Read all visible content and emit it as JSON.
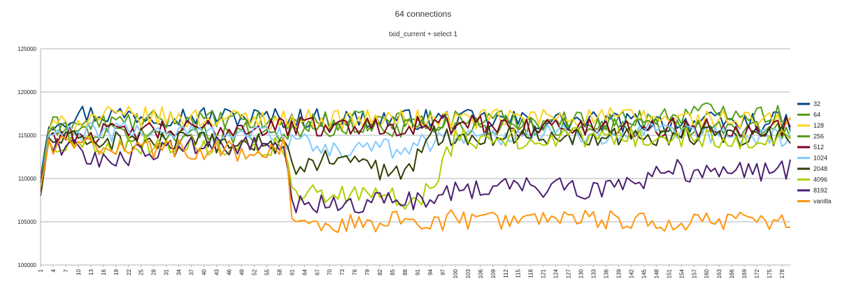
{
  "chart_data": {
    "type": "line",
    "title": "64 connections",
    "subtitle": "txid_current + select 1",
    "xlabel": "",
    "ylabel": "",
    "x_min": 1,
    "x_max": 180,
    "x_tick_labels": [
      "1",
      "4",
      "7",
      "10",
      "13",
      "16",
      "19",
      "22",
      "25",
      "28",
      "31",
      "34",
      "37",
      "40",
      "43",
      "46",
      "49",
      "52",
      "55",
      "58",
      "61",
      "64",
      "67",
      "70",
      "73",
      "76",
      "79",
      "82",
      "85",
      "88",
      "91",
      "94",
      "97",
      "100",
      "103",
      "106",
      "109",
      "112",
      "115",
      "118",
      "121",
      "124",
      "127",
      "130",
      "133",
      "136",
      "139",
      "142",
      "145",
      "148",
      "151",
      "154",
      "157",
      "160",
      "163",
      "166",
      "169",
      "172",
      "175",
      "178"
    ],
    "y_tick_labels": [
      "100000",
      "105000",
      "110000",
      "115000",
      "120000",
      "125000"
    ],
    "ylim": [
      100000,
      125000
    ],
    "grid": "horizontal",
    "legend_position": "right",
    "series": [
      {
        "name": "32",
        "color": "#004586",
        "profile": [
          [
            1,
            110000
          ],
          [
            3,
            116500
          ],
          [
            10,
            117500
          ],
          [
            60,
            117000
          ],
          [
            100,
            116800
          ],
          [
            140,
            116500
          ],
          [
            180,
            116500
          ]
        ]
      },
      {
        "name": "64",
        "color": "#579d1c",
        "profile": [
          [
            1,
            109500
          ],
          [
            3,
            116000
          ],
          [
            30,
            116800
          ],
          [
            60,
            116500
          ],
          [
            100,
            116800
          ],
          [
            140,
            116700
          ],
          [
            165,
            118000
          ],
          [
            180,
            117200
          ]
        ]
      },
      {
        "name": "128",
        "color": "#ffd320",
        "profile": [
          [
            1,
            109000
          ],
          [
            3,
            115800
          ],
          [
            15,
            117200
          ],
          [
            60,
            116800
          ],
          [
            100,
            116800
          ],
          [
            130,
            117200
          ],
          [
            180,
            116500
          ]
        ]
      },
      {
        "name": "256",
        "color": "#579d1c",
        "profile": [
          [
            1,
            109500
          ],
          [
            3,
            115500
          ],
          [
            30,
            115000
          ],
          [
            60,
            115500
          ],
          [
            100,
            116200
          ],
          [
            140,
            116000
          ],
          [
            180,
            115500
          ]
        ]
      },
      {
        "name": "512",
        "color": "#7e0021",
        "profile": [
          [
            1,
            108500
          ],
          [
            3,
            115000
          ],
          [
            20,
            115300
          ],
          [
            45,
            115800
          ],
          [
            60,
            116000
          ],
          [
            100,
            116200
          ],
          [
            140,
            115800
          ],
          [
            180,
            116000
          ]
        ]
      },
      {
        "name": "1024",
        "color": "#83caff",
        "profile": [
          [
            1,
            109000
          ],
          [
            3,
            115000
          ],
          [
            20,
            115500
          ],
          [
            58,
            115200
          ],
          [
            60,
            114500
          ],
          [
            70,
            113200
          ],
          [
            85,
            113500
          ],
          [
            93,
            114200
          ],
          [
            100,
            115000
          ],
          [
            140,
            115200
          ],
          [
            180,
            114800
          ]
        ]
      },
      {
        "name": "2048",
        "color": "#314004",
        "profile": [
          [
            1,
            108000
          ],
          [
            3,
            114500
          ],
          [
            30,
            114200
          ],
          [
            59,
            114000
          ],
          [
            61,
            111200
          ],
          [
            72,
            112500
          ],
          [
            82,
            111000
          ],
          [
            88,
            110600
          ],
          [
            91,
            112500
          ],
          [
            95,
            115000
          ],
          [
            140,
            115000
          ],
          [
            180,
            114800
          ]
        ]
      },
      {
        "name": "4096",
        "color": "#aecf00",
        "profile": [
          [
            1,
            109000
          ],
          [
            3,
            114000
          ],
          [
            30,
            114000
          ],
          [
            59,
            113800
          ],
          [
            61,
            108200
          ],
          [
            75,
            108000
          ],
          [
            90,
            107600
          ],
          [
            95,
            109000
          ],
          [
            98,
            113000
          ],
          [
            100,
            114500
          ],
          [
            140,
            114800
          ],
          [
            180,
            114500
          ]
        ]
      },
      {
        "name": "8192",
        "color": "#4b1f6f",
        "profile": [
          [
            1,
            109500
          ],
          [
            3,
            114000
          ],
          [
            10,
            113500
          ],
          [
            11,
            112000
          ],
          [
            40,
            113800
          ],
          [
            59,
            113600
          ],
          [
            61,
            106800
          ],
          [
            90,
            107400
          ],
          [
            100,
            108800
          ],
          [
            120,
            109000
          ],
          [
            135,
            108700
          ],
          [
            145,
            110000
          ],
          [
            150,
            111200
          ],
          [
            160,
            110500
          ],
          [
            175,
            110800
          ],
          [
            180,
            111200
          ]
        ]
      },
      {
        "name": "vanilla",
        "color": "#ff950e",
        "profile": [
          [
            1,
            109000
          ],
          [
            3,
            114000
          ],
          [
            30,
            113500
          ],
          [
            55,
            113000
          ],
          [
            59,
            113600
          ],
          [
            60,
            110500
          ],
          [
            61,
            104500
          ],
          [
            80,
            105000
          ],
          [
            100,
            105200
          ],
          [
            140,
            105100
          ],
          [
            180,
            104900
          ]
        ]
      }
    ]
  }
}
